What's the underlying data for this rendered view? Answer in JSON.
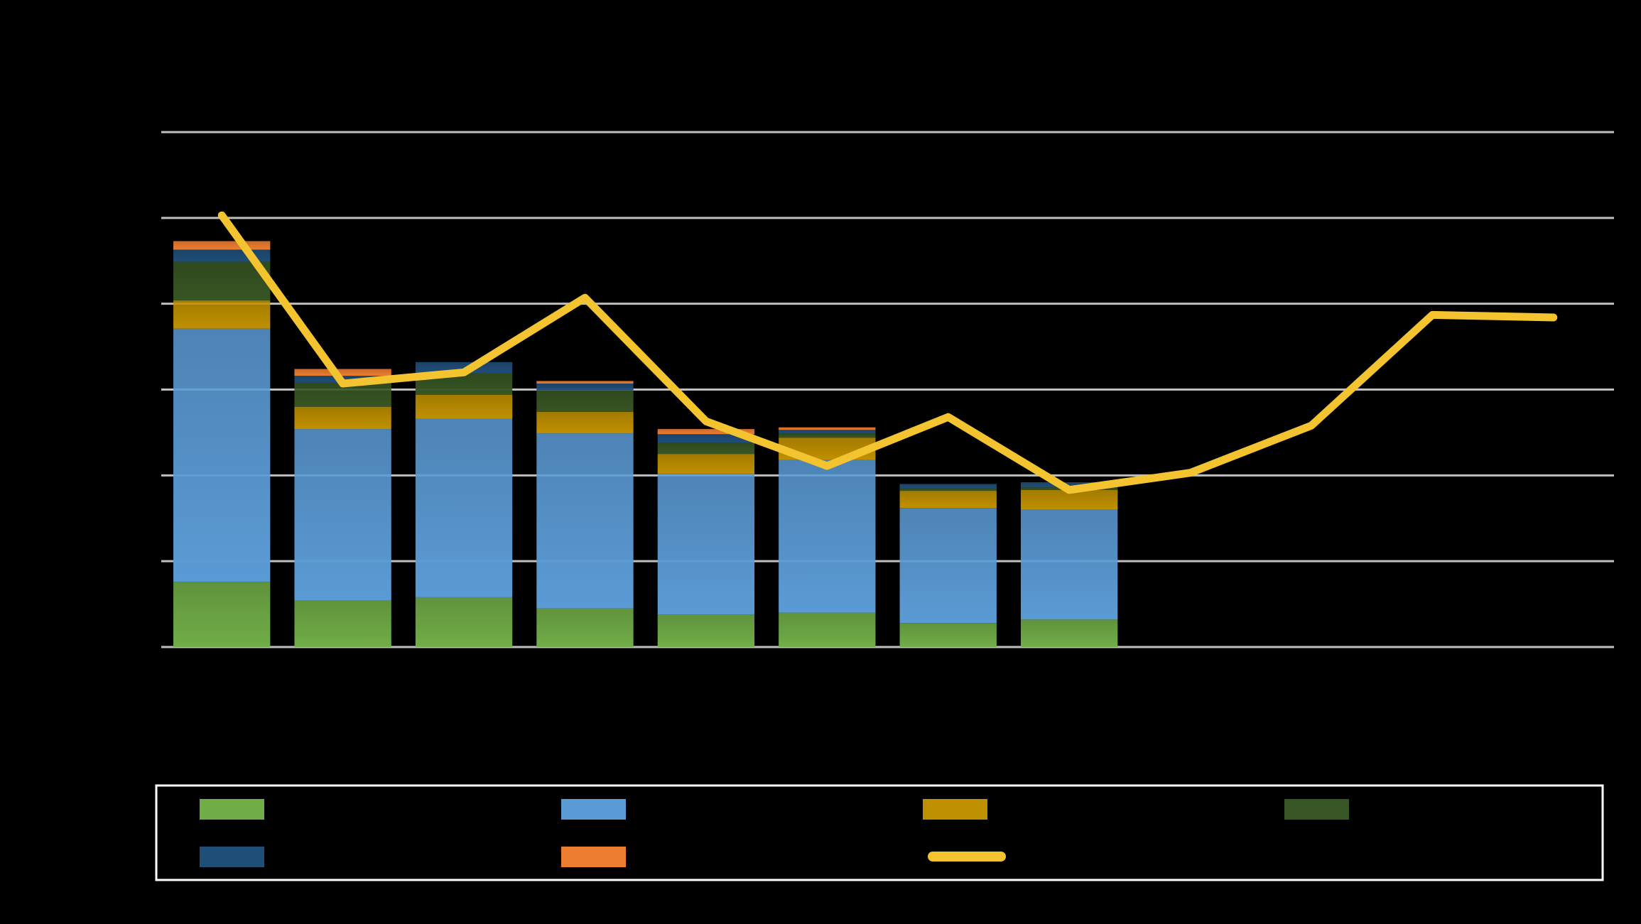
{
  "chart_data": {
    "type": "bar",
    "title": "",
    "xlabel": "",
    "ylabel": "",
    "ylim": [
      0,
      6
    ],
    "grid": true,
    "legend_position": "bottom",
    "categories": [
      "",
      "",
      "",
      "",
      "",
      "",
      "",
      "",
      "",
      "",
      "",
      ""
    ],
    "series": [
      {
        "kind": "bar",
        "color": "#70AD47",
        "values": [
          0.76,
          0.54,
          0.58,
          0.45,
          0.38,
          0.4,
          0.28,
          0.32,
          null,
          null,
          null,
          null
        ]
      },
      {
        "kind": "bar",
        "color": "#5B9BD5",
        "values": [
          2.95,
          2.0,
          2.08,
          2.04,
          1.64,
          1.78,
          1.34,
          1.28,
          null,
          null,
          null,
          null
        ]
      },
      {
        "kind": "bar",
        "color": "#BF9000",
        "values": [
          0.33,
          0.26,
          0.28,
          0.25,
          0.23,
          0.26,
          0.2,
          0.23,
          null,
          null,
          null,
          null
        ]
      },
      {
        "kind": "bar",
        "color": "#375623",
        "values": [
          0.45,
          0.28,
          0.25,
          0.25,
          0.13,
          0.05,
          0.03,
          0.03,
          null,
          null,
          null,
          null
        ]
      },
      {
        "kind": "bar",
        "color": "#1F4E79",
        "values": [
          0.14,
          0.08,
          0.13,
          0.08,
          0.1,
          0.04,
          0.05,
          0.06,
          null,
          null,
          null,
          null
        ]
      },
      {
        "kind": "bar",
        "color": "#ED7D31",
        "values": [
          0.1,
          0.08,
          0.0,
          0.03,
          0.06,
          0.03,
          0.0,
          0.0,
          null,
          null,
          null,
          null
        ]
      },
      {
        "kind": "line",
        "color": "#F4C430",
        "values": [
          5.03,
          3.07,
          3.2,
          4.07,
          2.63,
          2.11,
          2.68,
          1.83,
          2.03,
          2.58,
          3.87,
          3.84
        ]
      }
    ]
  }
}
